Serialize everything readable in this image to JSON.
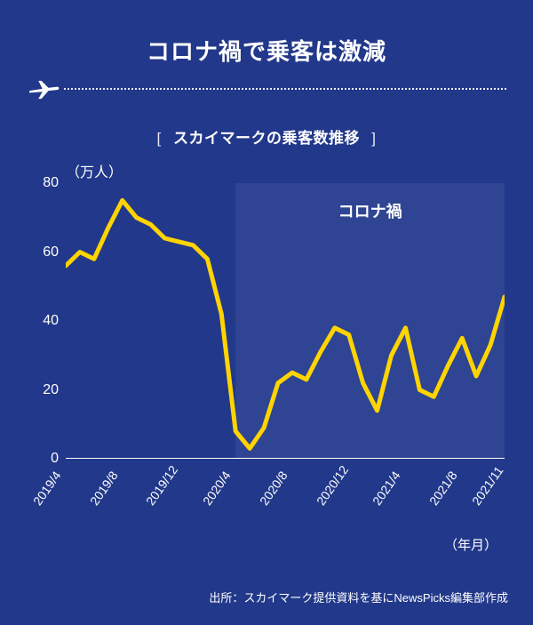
{
  "colors": {
    "background": "#22388a",
    "text": "#ffffff",
    "line": "#ffd400",
    "highlight_fill": "#3a4f99",
    "axis": "#ffffff"
  },
  "header": {
    "title": "コロナ禍で乗客は激減",
    "subtitle": "スカイマークの乗客数推移",
    "bracket_left": "[",
    "bracket_right": "]"
  },
  "chart": {
    "type": "line",
    "y_unit_prefix": "80",
    "y_unit_suffix": "（万人）",
    "ylim": [
      0,
      80
    ],
    "ytick_step": 20,
    "y_ticks": [
      0,
      20,
      40,
      60,
      80
    ],
    "x_labels": [
      "2019/4",
      "2019/8",
      "2019/12",
      "2020/4",
      "2020/8",
      "2020/12",
      "2021/4",
      "2021/8",
      "2021/11"
    ],
    "x_axis_label": "（年月）",
    "line_width": 5,
    "line_color": "#ffd400",
    "highlight": {
      "label": "コロナ禍",
      "start_index": 12,
      "end_index": 31
    },
    "series_months": [
      "2019/4",
      "2019/5",
      "2019/6",
      "2019/7",
      "2019/8",
      "2019/9",
      "2019/10",
      "2019/11",
      "2019/12",
      "2020/1",
      "2020/2",
      "2020/3",
      "2020/4",
      "2020/5",
      "2020/6",
      "2020/7",
      "2020/8",
      "2020/9",
      "2020/10",
      "2020/11",
      "2020/12",
      "2021/1",
      "2021/2",
      "2021/3",
      "2021/4",
      "2021/5",
      "2021/6",
      "2021/7",
      "2021/8",
      "2021/9",
      "2021/10",
      "2021/11"
    ],
    "values": [
      56,
      60,
      58,
      67,
      75,
      70,
      68,
      64,
      63,
      62,
      58,
      42,
      8,
      3,
      9,
      22,
      25,
      23,
      31,
      38,
      36,
      22,
      14,
      30,
      38,
      20,
      18,
      27,
      35,
      24,
      33,
      47
    ]
  },
  "source": "出所：スカイマーク提供資料を基にNewsPicks編集部作成"
}
